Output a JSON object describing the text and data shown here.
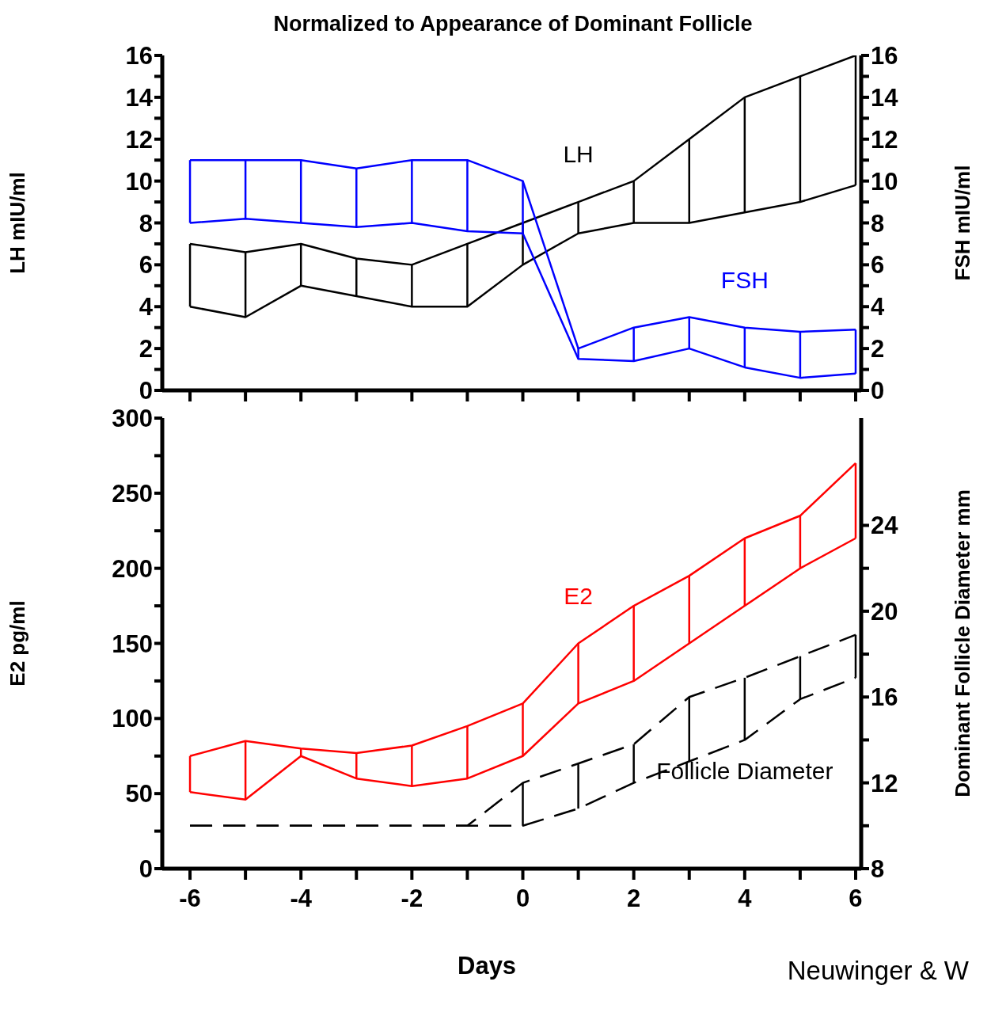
{
  "chart_data": [
    {
      "type": "line",
      "title": "Normalized to Appearance of Dominant Follicle",
      "ylabel": "LH mIU/ml",
      "y2label": "FSH mIU/ml",
      "x": [
        -6,
        -5,
        -4,
        -3,
        -2,
        -1,
        0,
        1,
        2,
        3,
        4,
        5,
        6
      ],
      "xlim": [
        -6.5,
        6.1
      ],
      "xticks": [
        -6,
        -5,
        -4,
        -3,
        -2,
        -1,
        0,
        1,
        2,
        3,
        4,
        5,
        6
      ],
      "ylim": [
        0,
        16
      ],
      "yticks": [
        0,
        {
          "value": 1,
          "label": null
        },
        2,
        {
          "value": 3,
          "label": null
        },
        4,
        {
          "value": 5,
          "label": null
        },
        6,
        {
          "value": 7,
          "label": null
        },
        8,
        {
          "value": 9,
          "label": null
        },
        10,
        {
          "value": 11,
          "label": null
        },
        12,
        {
          "value": 13,
          "label": null
        },
        14,
        {
          "value": 15,
          "label": null
        },
        16
      ],
      "y2lim": [
        0,
        16
      ],
      "y2ticks": [
        0,
        {
          "value": 1,
          "label": null
        },
        2,
        {
          "value": 3,
          "label": null
        },
        4,
        {
          "value": 5,
          "label": null
        },
        6,
        {
          "value": 7,
          "label": null
        },
        8,
        {
          "value": 9,
          "label": null
        },
        10,
        {
          "value": 11,
          "label": null
        },
        12,
        {
          "value": 13,
          "label": null
        },
        14,
        {
          "value": 15,
          "label": null
        },
        16
      ],
      "tick_labels": "y",
      "grid": false,
      "legend": false,
      "marker": "none",
      "series": [
        {
          "name": "LH",
          "color": "#000000",
          "values": [
            7.0,
            6.6,
            7.0,
            6.3,
            6.0,
            7.0,
            8.0,
            9.0,
            10.0,
            12.0,
            14.0,
            15.0,
            16.0
          ]
        },
        {
          "color": "#000000",
          "values": [
            4.0,
            3.5,
            5.0,
            4.5,
            4.0,
            4.0,
            6.0,
            7.5,
            8.0,
            8.0,
            8.5,
            9.0,
            9.8
          ],
          "errors": [
            [
              4.0,
              7.0
            ],
            [
              3.5,
              6.6
            ],
            [
              5.0,
              7.0
            ],
            [
              4.5,
              6.3
            ],
            [
              4.0,
              6.0
            ],
            [
              4.0,
              7.0
            ],
            [
              6.0,
              8.0
            ],
            [
              7.5,
              9.0
            ],
            [
              8.0,
              10.0
            ],
            [
              8.0,
              12.0
            ],
            [
              8.5,
              14.0
            ],
            [
              9.0,
              15.0
            ],
            [
              9.8,
              16.0
            ]
          ]
        },
        {
          "name": "FSH",
          "color": "#0000ff",
          "axis": "y2",
          "values": [
            11.0,
            11.0,
            11.0,
            10.6,
            11.0,
            11.0,
            10.0,
            2.0,
            3.0,
            3.5,
            3.0,
            2.8,
            2.9
          ]
        },
        {
          "color": "#0000ff",
          "axis": "y2",
          "values": [
            8.0,
            8.2,
            8.0,
            7.8,
            8.0,
            7.6,
            7.5,
            1.5,
            1.4,
            2.0,
            1.1,
            0.6,
            0.8
          ],
          "errors": [
            [
              8.0,
              11.0
            ],
            [
              8.2,
              11.0
            ],
            [
              8.0,
              11.0
            ],
            [
              7.8,
              10.6
            ],
            [
              8.0,
              11.0
            ],
            [
              7.6,
              11.0
            ],
            [
              7.5,
              10.0
            ],
            [
              1.5,
              2.0
            ],
            [
              1.4,
              3.0
            ],
            [
              2.0,
              3.5
            ],
            [
              1.1,
              3.0
            ],
            [
              0.6,
              2.8
            ],
            [
              0.8,
              2.9
            ]
          ]
        }
      ]
    },
    {
      "type": "line",
      "xlabel": "Days",
      "ylabel": "E2 pg/ml",
      "y2label": "Dominant Follicle Diameter mm",
      "x": [
        -6,
        -5,
        -4,
        -3,
        -2,
        -1,
        0,
        1,
        2,
        3,
        4,
        5,
        6
      ],
      "xlim": [
        -6.5,
        6.1
      ],
      "xticks": [
        -6,
        {
          "value": -5,
          "label": null
        },
        -4,
        {
          "value": -3,
          "label": null
        },
        -2,
        {
          "value": -1,
          "label": null
        },
        0,
        {
          "value": 1,
          "label": null
        },
        2,
        {
          "value": 3,
          "label": null
        },
        4,
        {
          "value": 5,
          "label": null
        },
        6
      ],
      "ylim": [
        0,
        300
      ],
      "yticks": [
        0,
        {
          "value": 25,
          "label": null
        },
        50,
        {
          "value": 75,
          "label": null
        },
        100,
        {
          "value": 125,
          "label": null
        },
        150,
        {
          "value": 175,
          "label": null
        },
        200,
        {
          "value": 225,
          "label": null
        },
        250,
        {
          "value": 275,
          "label": null
        },
        300
      ],
      "y2lim": [
        8,
        29
      ],
      "y2ticks": [
        8,
        {
          "value": 10,
          "label": null
        },
        12,
        {
          "value": 14,
          "label": null
        },
        16,
        {
          "value": 18,
          "label": null
        },
        20,
        {
          "value": 22,
          "label": null
        },
        24
      ],
      "grid": false,
      "legend": false,
      "marker": "none",
      "annotations": [
        "Neuwinger & W"
      ],
      "series": [
        {
          "name": "E2",
          "color": "#ff0000",
          "values": [
            75,
            85,
            80,
            77,
            82,
            95,
            110,
            150,
            175,
            195,
            220,
            235,
            270
          ]
        },
        {
          "color": "#ff0000",
          "values": [
            51,
            46,
            75,
            60,
            55,
            60,
            75,
            110,
            125,
            150,
            175,
            200,
            220
          ],
          "errors": [
            [
              51,
              75
            ],
            [
              46,
              85
            ],
            [
              75,
              80
            ],
            [
              60,
              77
            ],
            [
              55,
              82
            ],
            [
              60,
              95
            ],
            [
              75,
              110
            ],
            [
              110,
              150
            ],
            [
              125,
              175
            ],
            [
              150,
              195
            ],
            [
              175,
              220
            ],
            [
              200,
              235
            ],
            [
              220,
              270
            ]
          ]
        },
        {
          "name": "Follicle Diameter",
          "color": "#000000",
          "axis": "y2",
          "line_style": "dashed",
          "values": [
            10.0,
            10.0,
            10.0,
            10.0,
            10.0,
            10.0,
            12.0,
            12.9,
            13.8,
            16.0,
            16.9,
            17.9,
            18.9
          ]
        },
        {
          "color": "#000000",
          "axis": "y2",
          "line_style": "dashed",
          "values": [
            10.0,
            10.0,
            10.0,
            10.0,
            10.0,
            10.0,
            10.0,
            10.8,
            12.0,
            13.0,
            14.0,
            15.9,
            16.9
          ],
          "errors": [
            null,
            null,
            null,
            null,
            null,
            null,
            [
              10.0,
              12.0
            ],
            [
              10.8,
              12.9
            ],
            [
              12.0,
              13.8
            ],
            [
              13.0,
              16.0
            ],
            [
              14.0,
              16.9
            ],
            [
              15.9,
              17.9
            ],
            [
              16.9,
              18.9
            ]
          ]
        }
      ]
    }
  ]
}
